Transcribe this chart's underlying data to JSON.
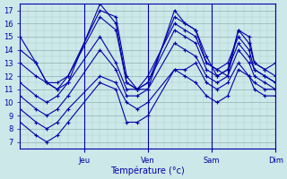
{
  "xlabel": "Température (°c)",
  "bg_color": "#cce8e8",
  "plot_bg_color": "#cce8e8",
  "line_color": "#0000aa",
  "grid_major_color": "#99bbbb",
  "grid_minor_color": "#aacccc",
  "ylim": [
    6.5,
    17.5
  ],
  "yticks": [
    7,
    8,
    9,
    10,
    11,
    12,
    13,
    14,
    15,
    16,
    17
  ],
  "xlim": [
    0,
    96
  ],
  "day_ticks": [
    24,
    48,
    72,
    96
  ],
  "day_labels": [
    "Jeu",
    "Ven",
    "Sam",
    "Dim"
  ],
  "series": [
    [
      15.0,
      13.0,
      11.5,
      11.5,
      12.0,
      17.0,
      16.5,
      12.0,
      11.0,
      11.0,
      17.0,
      16.0,
      15.5,
      13.0,
      12.5,
      12.0,
      15.5,
      15.0,
      13.0,
      12.5,
      13.0
    ],
    [
      13.0,
      12.0,
      11.5,
      11.0,
      11.5,
      17.5,
      16.0,
      11.5,
      11.0,
      11.5,
      16.5,
      16.0,
      15.5,
      13.5,
      12.0,
      12.5,
      15.5,
      14.5,
      13.0,
      12.5,
      12.0
    ],
    [
      14.0,
      13.0,
      11.5,
      11.0,
      12.0,
      16.5,
      15.5,
      11.5,
      11.0,
      12.0,
      16.0,
      15.5,
      15.0,
      13.0,
      12.5,
      13.0,
      15.0,
      14.0,
      12.5,
      12.0,
      11.5
    ],
    [
      11.5,
      10.5,
      10.0,
      10.5,
      11.5,
      15.0,
      13.0,
      11.0,
      11.0,
      11.5,
      15.5,
      15.0,
      14.5,
      12.5,
      12.0,
      12.5,
      14.5,
      13.5,
      12.5,
      12.0,
      11.5
    ],
    [
      10.5,
      9.5,
      9.0,
      9.5,
      10.5,
      14.0,
      12.5,
      10.5,
      10.5,
      11.0,
      14.5,
      14.0,
      13.5,
      12.0,
      11.5,
      12.0,
      14.0,
      13.0,
      12.0,
      11.5,
      11.0
    ],
    [
      9.5,
      8.5,
      8.0,
      8.5,
      9.5,
      12.0,
      11.5,
      10.0,
      9.5,
      10.0,
      12.5,
      12.5,
      13.0,
      11.5,
      11.0,
      11.5,
      13.0,
      12.0,
      11.5,
      11.0,
      11.0
    ],
    [
      8.5,
      7.5,
      7.0,
      7.5,
      8.5,
      11.5,
      11.0,
      8.5,
      8.5,
      9.0,
      12.5,
      12.0,
      11.5,
      10.5,
      10.0,
      10.5,
      12.5,
      12.0,
      11.0,
      10.5,
      10.5
    ]
  ],
  "series_x": [
    0,
    6,
    10,
    14,
    18,
    30,
    36,
    40,
    44,
    48,
    58,
    62,
    66,
    70,
    74,
    78,
    82,
    86,
    88,
    92,
    96
  ]
}
